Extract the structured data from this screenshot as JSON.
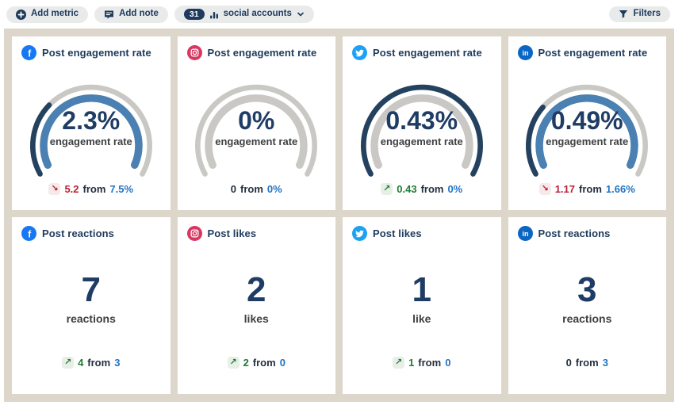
{
  "toolbar": {
    "add_metric_label": "Add metric",
    "add_note_label": "Add note",
    "accounts_count": "31",
    "accounts_label": "social accounts",
    "filters_label": "Filters"
  },
  "labels": {
    "from": "from"
  },
  "icons": {
    "trend_up": "↗",
    "trend_down": "↘",
    "add_metric": "plus-circle-icon",
    "add_note": "note-icon",
    "accounts": "bar-chart-icon",
    "accounts_chevron": "chevron-down-icon",
    "filters": "funnel-icon"
  },
  "colors": {
    "panel_bg": "#ddd6cb",
    "pill_bg": "#e9ebeb",
    "navy_text": "#1e3a5c",
    "value_text": "#1f3c64",
    "link_blue": "#2173c4",
    "positive_green": "#1f7a33",
    "negative_red": "#bb2030",
    "gauge_current": "#24425f",
    "gauge_previous": "#4a80b2",
    "gauge_track": "#c9c8c5",
    "facebook": "#1877F2",
    "instagram": "#d63862",
    "twitter": "#1DA1F2",
    "linkedin": "#0A66C2"
  },
  "cards": [
    {
      "platform": "facebook",
      "title": "Post engagement rate",
      "type": "gauge",
      "value": "2.3%",
      "value_label": "engagement rate",
      "gauge": {
        "current": 2.3,
        "previous": 7.5
      },
      "delta": {
        "direction": "down",
        "change": "5.2",
        "from": "7.5%"
      }
    },
    {
      "platform": "instagram",
      "title": "Post engagement rate",
      "type": "gauge",
      "value": "0%",
      "value_label": "engagement rate",
      "gauge": {
        "current": 0,
        "previous": 0
      },
      "delta": {
        "direction": "none",
        "change": "0",
        "from": "0%"
      }
    },
    {
      "platform": "twitter",
      "title": "Post engagement rate",
      "type": "gauge",
      "value": "0.43%",
      "value_label": "engagement rate",
      "gauge": {
        "current": 0.43,
        "previous": 0
      },
      "delta": {
        "direction": "up",
        "change": "0.43",
        "from": "0%"
      }
    },
    {
      "platform": "linkedin",
      "title": "Post engagement rate",
      "type": "gauge",
      "value": "0.49%",
      "value_label": "engagement rate",
      "gauge": {
        "current": 0.49,
        "previous": 1.66
      },
      "delta": {
        "direction": "down",
        "change": "1.17",
        "from": "1.66%"
      }
    },
    {
      "platform": "facebook",
      "title": "Post reactions",
      "type": "number",
      "value": "7",
      "value_label": "reactions",
      "delta": {
        "direction": "up",
        "change": "4",
        "from": "3"
      }
    },
    {
      "platform": "instagram",
      "title": "Post likes",
      "type": "number",
      "value": "2",
      "value_label": "likes",
      "delta": {
        "direction": "up",
        "change": "2",
        "from": "0"
      }
    },
    {
      "platform": "twitter",
      "title": "Post likes",
      "type": "number",
      "value": "1",
      "value_label": "like",
      "delta": {
        "direction": "up",
        "change": "1",
        "from": "0"
      }
    },
    {
      "platform": "linkedin",
      "title": "Post reactions",
      "type": "number",
      "value": "3",
      "value_label": "reactions",
      "delta": {
        "direction": "none",
        "change": "0",
        "from": "3"
      }
    }
  ]
}
